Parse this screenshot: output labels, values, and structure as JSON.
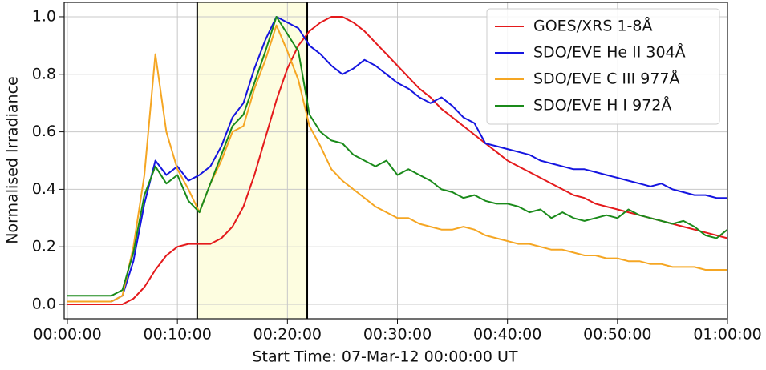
{
  "chart_data": {
    "type": "line",
    "xlabel": "Start Time: 07-Mar-12 00:00:00 UT",
    "ylabel": "Normalised Irradiance",
    "x": [
      0,
      1,
      2,
      3,
      4,
      5,
      6,
      7,
      8,
      9,
      10,
      11,
      12,
      13,
      14,
      15,
      16,
      17,
      18,
      19,
      20,
      21,
      22,
      23,
      24,
      25,
      26,
      27,
      28,
      29,
      30,
      31,
      32,
      33,
      34,
      35,
      36,
      37,
      38,
      39,
      40,
      41,
      42,
      43,
      44,
      45,
      46,
      47,
      48,
      49,
      50,
      51,
      52,
      53,
      54,
      55,
      56,
      57,
      58,
      59,
      60
    ],
    "series": [
      {
        "name": "GOES/XRS 1-8Å",
        "color": "#e41a1c",
        "values": [
          0,
          0,
          0,
          0,
          0,
          0,
          0.02,
          0.06,
          0.12,
          0.17,
          0.2,
          0.21,
          0.21,
          0.21,
          0.23,
          0.27,
          0.34,
          0.45,
          0.58,
          0.71,
          0.82,
          0.9,
          0.95,
          0.98,
          1.0,
          1.0,
          0.98,
          0.95,
          0.91,
          0.87,
          0.83,
          0.79,
          0.75,
          0.72,
          0.68,
          0.65,
          0.62,
          0.59,
          0.56,
          0.53,
          0.5,
          0.48,
          0.46,
          0.44,
          0.42,
          0.4,
          0.38,
          0.37,
          0.35,
          0.34,
          0.33,
          0.32,
          0.31,
          0.3,
          0.29,
          0.28,
          0.27,
          0.26,
          0.25,
          0.24,
          0.23
        ]
      },
      {
        "name": "SDO/EVE He II 304Å",
        "color": "#1515e0",
        "values": [
          0.01,
          0.01,
          0.01,
          0.01,
          0.01,
          0.03,
          0.15,
          0.35,
          0.5,
          0.45,
          0.48,
          0.43,
          0.45,
          0.48,
          0.55,
          0.65,
          0.7,
          0.82,
          0.92,
          1.0,
          0.98,
          0.96,
          0.9,
          0.87,
          0.83,
          0.8,
          0.82,
          0.85,
          0.83,
          0.8,
          0.77,
          0.75,
          0.72,
          0.7,
          0.72,
          0.69,
          0.65,
          0.63,
          0.56,
          0.55,
          0.54,
          0.53,
          0.52,
          0.5,
          0.49,
          0.48,
          0.47,
          0.47,
          0.46,
          0.45,
          0.44,
          0.43,
          0.42,
          0.41,
          0.42,
          0.4,
          0.39,
          0.38,
          0.38,
          0.37,
          0.37
        ]
      },
      {
        "name": "SDO/EVE C III 977Å",
        "color": "#f5a623",
        "values": [
          0.01,
          0.01,
          0.01,
          0.01,
          0.01,
          0.03,
          0.2,
          0.45,
          0.87,
          0.6,
          0.47,
          0.4,
          0.32,
          0.42,
          0.5,
          0.6,
          0.62,
          0.75,
          0.85,
          0.97,
          0.88,
          0.78,
          0.62,
          0.55,
          0.47,
          0.43,
          0.4,
          0.37,
          0.34,
          0.32,
          0.3,
          0.3,
          0.28,
          0.27,
          0.26,
          0.26,
          0.27,
          0.26,
          0.24,
          0.23,
          0.22,
          0.21,
          0.21,
          0.2,
          0.19,
          0.19,
          0.18,
          0.17,
          0.17,
          0.16,
          0.16,
          0.15,
          0.15,
          0.14,
          0.14,
          0.13,
          0.13,
          0.13,
          0.12,
          0.12,
          0.12
        ]
      },
      {
        "name": "SDO/EVE H I 972Å",
        "color": "#1a8a1a",
        "values": [
          0.03,
          0.03,
          0.03,
          0.03,
          0.03,
          0.05,
          0.18,
          0.38,
          0.48,
          0.42,
          0.45,
          0.36,
          0.32,
          0.42,
          0.52,
          0.62,
          0.66,
          0.77,
          0.88,
          1.0,
          0.94,
          0.88,
          0.66,
          0.6,
          0.57,
          0.56,
          0.52,
          0.5,
          0.48,
          0.5,
          0.45,
          0.47,
          0.45,
          0.43,
          0.4,
          0.39,
          0.37,
          0.38,
          0.36,
          0.35,
          0.35,
          0.34,
          0.32,
          0.33,
          0.3,
          0.32,
          0.3,
          0.29,
          0.3,
          0.31,
          0.3,
          0.33,
          0.31,
          0.3,
          0.29,
          0.28,
          0.29,
          0.27,
          0.24,
          0.23,
          0.26
        ]
      }
    ],
    "shaded_span": [
      11.8,
      21.8
    ],
    "shaded_color": "#fdfde0",
    "xlim": [
      -2,
      60
    ],
    "ylim": [
      -0.05,
      1.05
    ],
    "xticks": [
      {
        "value": 0,
        "label": "00:00:00"
      },
      {
        "value": 10,
        "label": "00:10:00"
      },
      {
        "value": 20,
        "label": "00:20:00"
      },
      {
        "value": 30,
        "label": "00:30:00"
      },
      {
        "value": 40,
        "label": "00:40:00"
      },
      {
        "value": 50,
        "label": "00:50:00"
      },
      {
        "value": 60,
        "label": "01:00:00"
      }
    ],
    "yticks": [
      {
        "value": 0,
        "label": "0.0"
      },
      {
        "value": 0.2,
        "label": "0.2"
      },
      {
        "value": 0.4,
        "label": "0.4"
      },
      {
        "value": 0.6,
        "label": "0.6"
      },
      {
        "value": 0.8,
        "label": "0.8"
      },
      {
        "value": 1.0,
        "label": "1.0"
      }
    ],
    "grid": true,
    "legend": "upper right"
  }
}
